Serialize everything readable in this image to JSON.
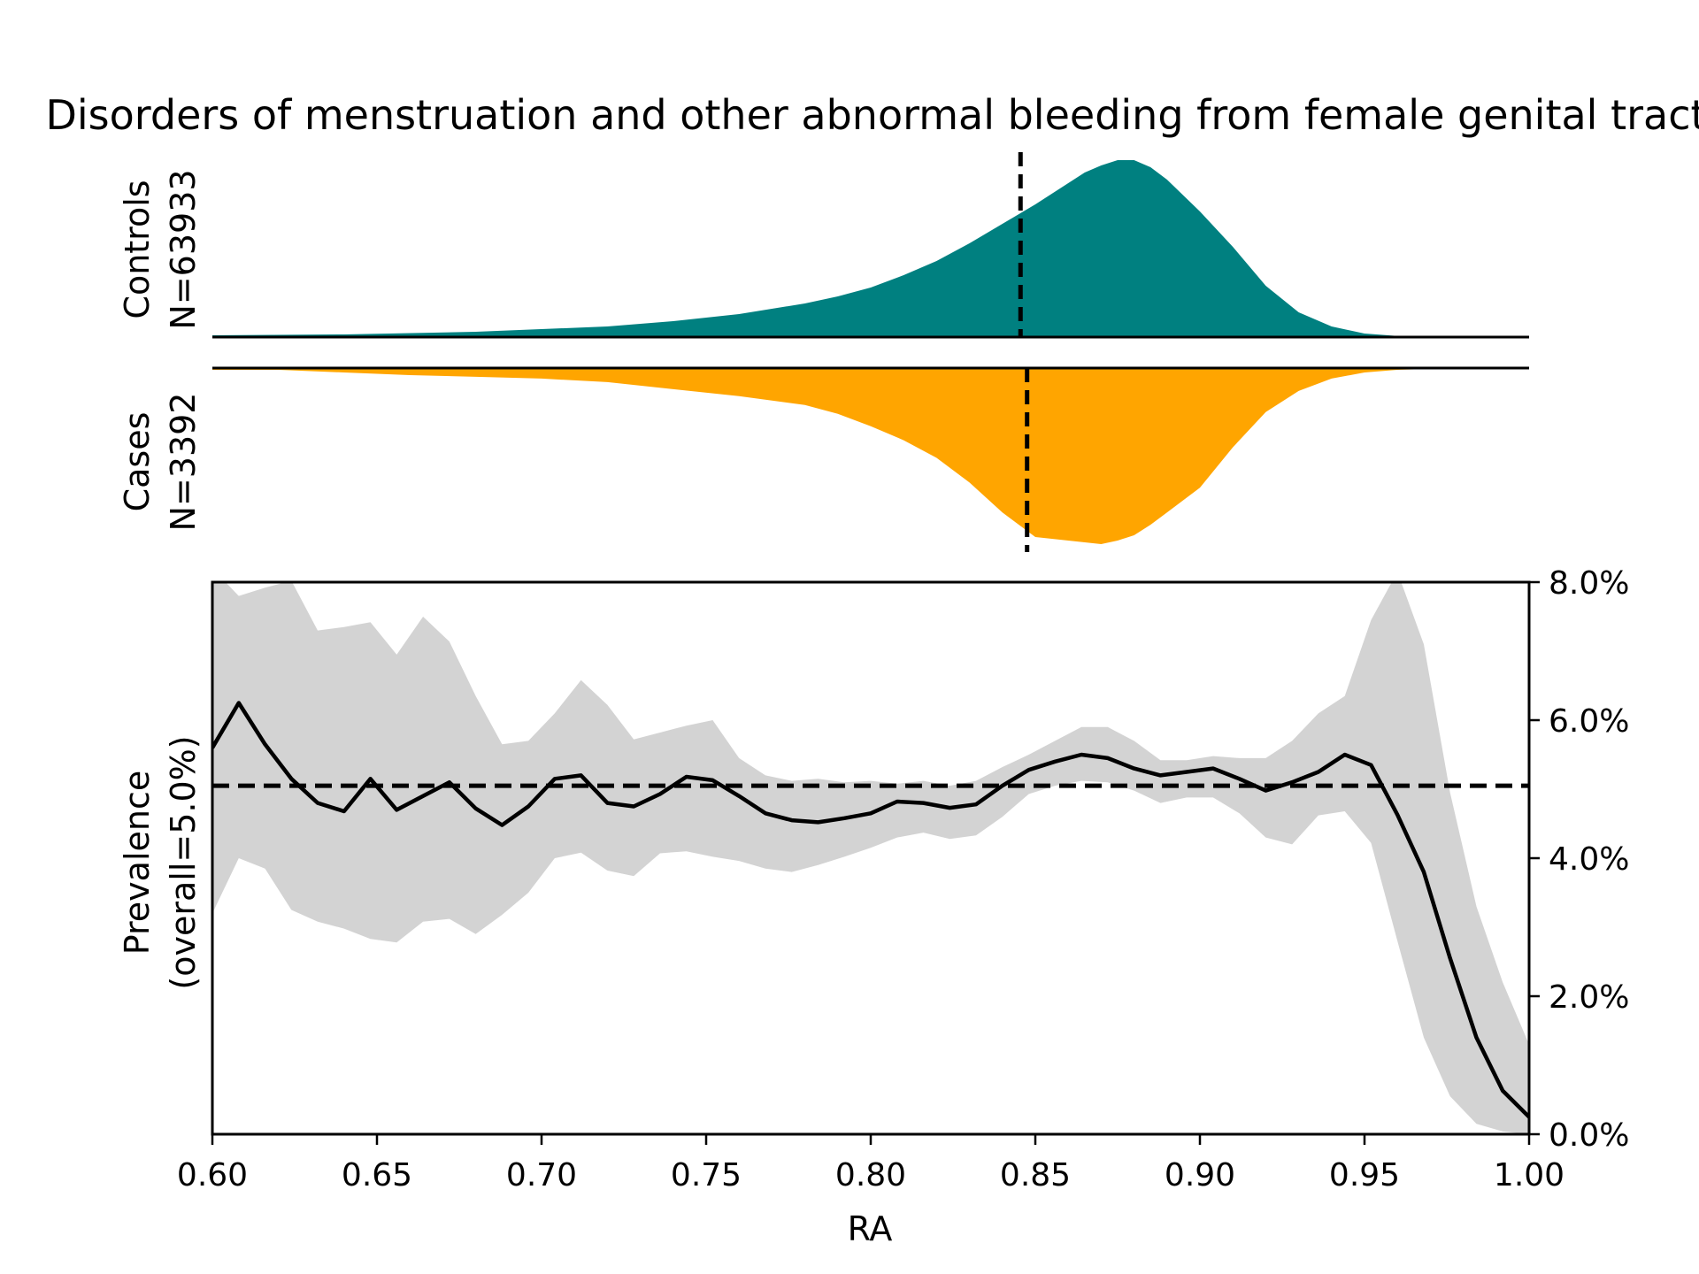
{
  "chart_data": {
    "type": "area",
    "title": "Disorders of menstruation and other abnormal bleeding from female genital tract",
    "xlabel": "RA",
    "xlim": [
      0.6,
      1.0
    ],
    "x_ticks": [
      "0.60",
      "0.65",
      "0.70",
      "0.75",
      "0.80",
      "0.85",
      "0.90",
      "0.95",
      "1.00"
    ],
    "colors": {
      "controls": "#008080",
      "cases": "#FFA500",
      "ci_band": "#D3D3D3",
      "line": "#000000"
    },
    "distribution": {
      "controls": {
        "label": "Controls",
        "n_label": "N=63933",
        "mean_ra": 0.8455,
        "x": [
          0.6,
          0.64,
          0.68,
          0.72,
          0.74,
          0.76,
          0.78,
          0.79,
          0.8,
          0.81,
          0.82,
          0.83,
          0.84,
          0.85,
          0.86,
          0.865,
          0.87,
          0.875,
          0.88,
          0.885,
          0.89,
          0.9,
          0.91,
          0.92,
          0.93,
          0.94,
          0.95,
          0.96,
          0.97,
          1.0
        ],
        "density": [
          0.01,
          0.015,
          0.03,
          0.06,
          0.09,
          0.13,
          0.19,
          0.23,
          0.28,
          0.35,
          0.43,
          0.53,
          0.64,
          0.75,
          0.87,
          0.93,
          0.97,
          1.0,
          1.0,
          0.96,
          0.89,
          0.71,
          0.51,
          0.29,
          0.14,
          0.06,
          0.02,
          0.006,
          0.002,
          0.0
        ]
      },
      "cases": {
        "label": "Cases",
        "n_label": "N=3392",
        "mean_ra": 0.8475,
        "x": [
          0.6,
          0.62,
          0.64,
          0.66,
          0.68,
          0.7,
          0.72,
          0.74,
          0.76,
          0.78,
          0.79,
          0.8,
          0.81,
          0.82,
          0.83,
          0.84,
          0.85,
          0.86,
          0.865,
          0.87,
          0.875,
          0.88,
          0.885,
          0.89,
          0.9,
          0.91,
          0.92,
          0.93,
          0.94,
          0.95,
          0.96,
          0.97,
          0.98,
          1.0
        ],
        "density": [
          0.01,
          0.01,
          0.025,
          0.04,
          0.05,
          0.06,
          0.08,
          0.12,
          0.16,
          0.21,
          0.26,
          0.33,
          0.41,
          0.51,
          0.65,
          0.82,
          0.96,
          0.98,
          0.99,
          1.0,
          0.98,
          0.95,
          0.89,
          0.82,
          0.68,
          0.45,
          0.25,
          0.13,
          0.06,
          0.025,
          0.01,
          0.005,
          0.003,
          0.0
        ]
      }
    },
    "prevalence": {
      "ylabel_line1": "Prevalence",
      "ylabel_line2": "(overall=5.0%)",
      "overall": 5.05,
      "ylim": [
        0,
        8.0
      ],
      "y_ticks": [
        0,
        2,
        4,
        6,
        8
      ],
      "y_tick_labels": [
        "0.0%",
        "2.0%",
        "4.0%",
        "6.0%",
        "8.0%"
      ],
      "x": [
        0.6,
        0.608,
        0.616,
        0.624,
        0.632,
        0.64,
        0.648,
        0.656,
        0.664,
        0.672,
        0.68,
        0.688,
        0.696,
        0.704,
        0.712,
        0.72,
        0.728,
        0.736,
        0.744,
        0.752,
        0.76,
        0.768,
        0.776,
        0.784,
        0.792,
        0.8,
        0.808,
        0.816,
        0.824,
        0.832,
        0.84,
        0.848,
        0.856,
        0.864,
        0.872,
        0.88,
        0.888,
        0.896,
        0.904,
        0.912,
        0.92,
        0.928,
        0.936,
        0.944,
        0.952,
        0.96,
        0.968,
        0.976,
        0.984,
        0.992,
        1.0
      ],
      "value": [
        5.6,
        6.25,
        5.65,
        5.15,
        4.8,
        4.68,
        5.15,
        4.7,
        4.9,
        5.1,
        4.72,
        4.48,
        4.75,
        5.15,
        5.2,
        4.8,
        4.75,
        4.93,
        5.18,
        5.13,
        4.9,
        4.65,
        4.55,
        4.52,
        4.58,
        4.65,
        4.82,
        4.8,
        4.73,
        4.78,
        5.05,
        5.28,
        5.4,
        5.5,
        5.45,
        5.3,
        5.2,
        5.25,
        5.3,
        5.15,
        4.98,
        5.1,
        5.25,
        5.5,
        5.35,
        4.63,
        3.8,
        2.55,
        1.4,
        0.63,
        0.25
      ],
      "upper": [
        8.2,
        7.8,
        7.92,
        8.02,
        7.3,
        7.35,
        7.42,
        6.95,
        7.5,
        7.14,
        6.35,
        5.65,
        5.7,
        6.1,
        6.58,
        6.22,
        5.72,
        5.82,
        5.92,
        6.0,
        5.45,
        5.2,
        5.12,
        5.15,
        5.1,
        5.12,
        5.08,
        5.12,
        5.05,
        5.12,
        5.32,
        5.5,
        5.7,
        5.9,
        5.9,
        5.7,
        5.42,
        5.42,
        5.48,
        5.45,
        5.45,
        5.7,
        6.1,
        6.35,
        7.45,
        8.15,
        7.1,
        4.95,
        3.3,
        2.2,
        1.3
      ],
      "lower": [
        3.2,
        4.0,
        3.85,
        3.25,
        3.08,
        2.98,
        2.83,
        2.78,
        3.08,
        3.12,
        2.9,
        3.18,
        3.5,
        4.0,
        4.08,
        3.82,
        3.74,
        4.07,
        4.1,
        4.02,
        3.96,
        3.85,
        3.8,
        3.9,
        4.02,
        4.15,
        4.3,
        4.37,
        4.28,
        4.33,
        4.6,
        4.93,
        5.05,
        5.12,
        5.1,
        4.98,
        4.8,
        4.88,
        4.88,
        4.65,
        4.3,
        4.2,
        4.62,
        4.68,
        4.22,
        2.8,
        1.4,
        0.55,
        0.15,
        0.04,
        0.0
      ]
    }
  }
}
